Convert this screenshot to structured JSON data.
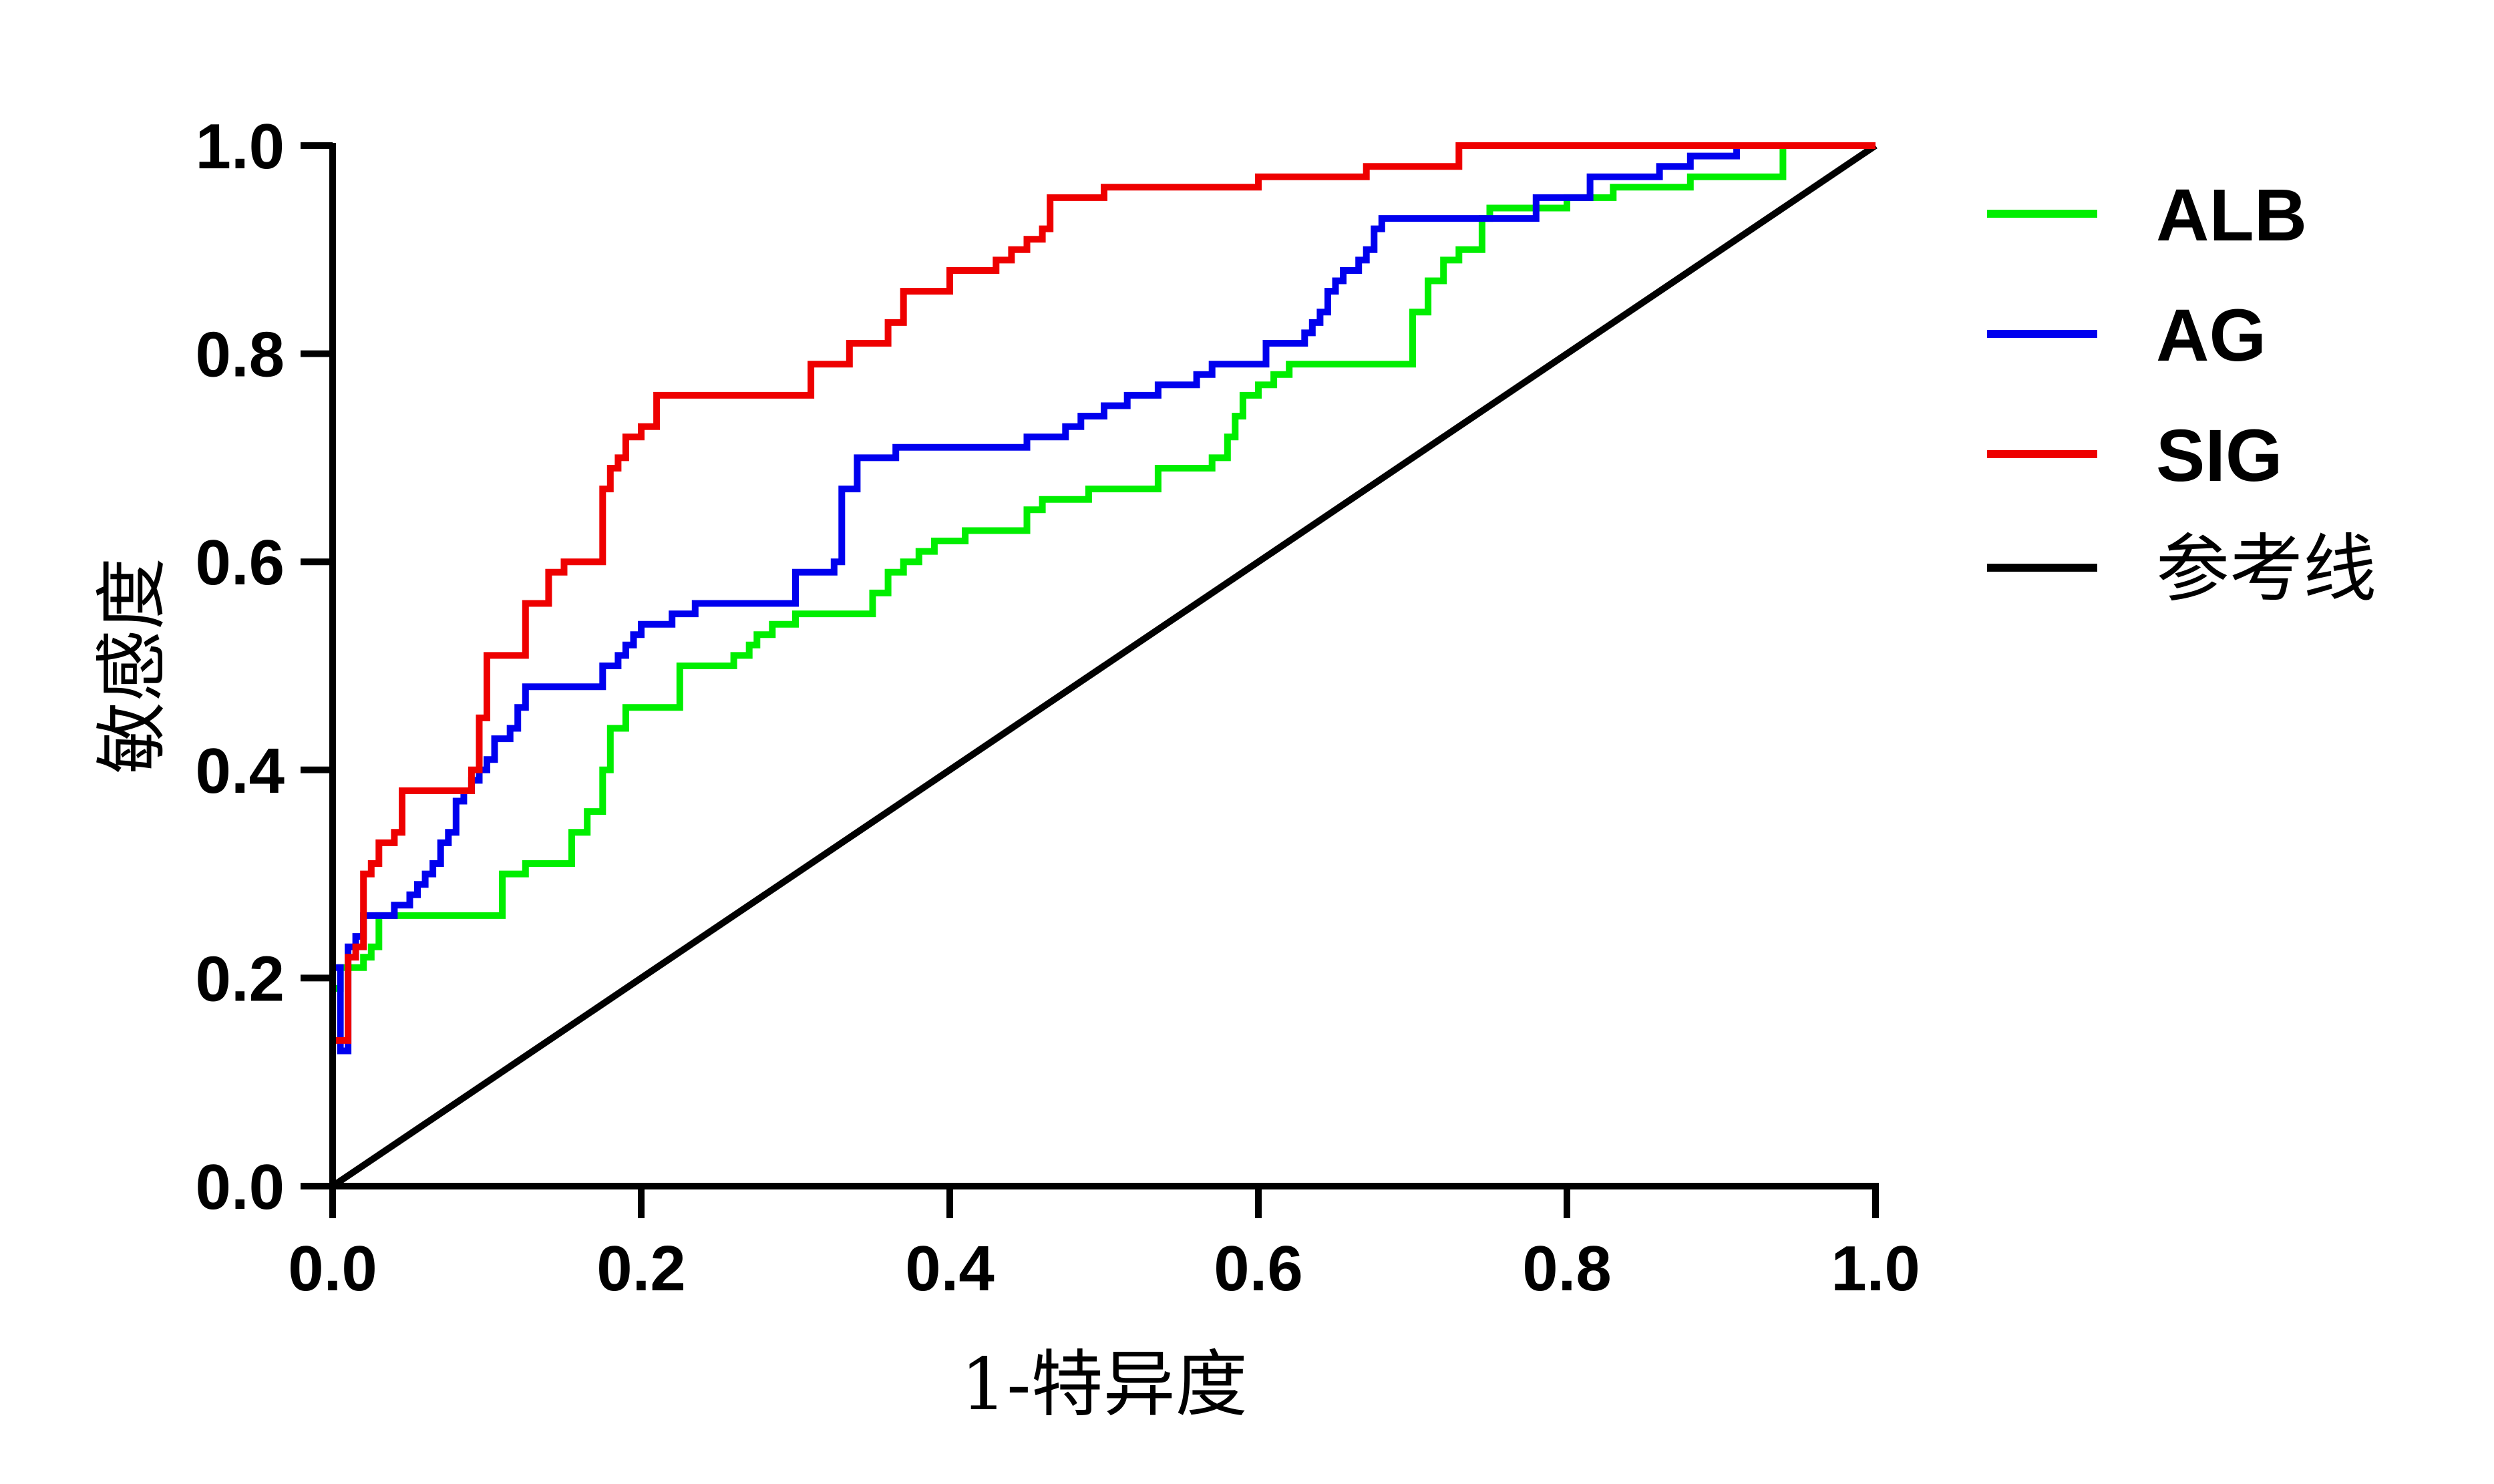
{
  "chart_data": {
    "type": "line",
    "title": "",
    "xlabel": "1-特异度",
    "ylabel": "敏感度",
    "xlim": [
      0,
      1.0
    ],
    "ylim": [
      0,
      1.0
    ],
    "xticks": [
      "0.0",
      "0.2",
      "0.4",
      "0.6",
      "0.8",
      "1.0"
    ],
    "yticks": [
      "0.0",
      "0.2",
      "0.4",
      "0.6",
      "0.8",
      "1.0"
    ],
    "grid": false,
    "legend_position": "right",
    "series": [
      {
        "name": "ALB",
        "color": "#00ee00",
        "step": true,
        "points": [
          [
            0,
            0.19
          ],
          [
            0.005,
            0.21
          ],
          [
            0.02,
            0.22
          ],
          [
            0.025,
            0.23
          ],
          [
            0.03,
            0.26
          ],
          [
            0.105,
            0.26
          ],
          [
            0.11,
            0.3
          ],
          [
            0.125,
            0.31
          ],
          [
            0.15,
            0.31
          ],
          [
            0.155,
            0.34
          ],
          [
            0.165,
            0.36
          ],
          [
            0.17,
            0.36
          ],
          [
            0.175,
            0.4
          ],
          [
            0.18,
            0.44
          ],
          [
            0.19,
            0.46
          ],
          [
            0.22,
            0.46
          ],
          [
            0.225,
            0.5
          ],
          [
            0.25,
            0.5
          ],
          [
            0.26,
            0.51
          ],
          [
            0.27,
            0.52
          ],
          [
            0.275,
            0.53
          ],
          [
            0.285,
            0.54
          ],
          [
            0.3,
            0.55
          ],
          [
            0.33,
            0.55
          ],
          [
            0.35,
            0.57
          ],
          [
            0.36,
            0.59
          ],
          [
            0.37,
            0.6
          ],
          [
            0.38,
            0.61
          ],
          [
            0.39,
            0.62
          ],
          [
            0.41,
            0.63
          ],
          [
            0.445,
            0.63
          ],
          [
            0.45,
            0.65
          ],
          [
            0.46,
            0.66
          ],
          [
            0.49,
            0.67
          ],
          [
            0.53,
            0.67
          ],
          [
            0.535,
            0.69
          ],
          [
            0.565,
            0.69
          ],
          [
            0.57,
            0.7
          ],
          [
            0.58,
            0.72
          ],
          [
            0.585,
            0.74
          ],
          [
            0.59,
            0.76
          ],
          [
            0.6,
            0.77
          ],
          [
            0.61,
            0.78
          ],
          [
            0.62,
            0.79
          ],
          [
            0.7,
            0.79
          ],
          [
            0.7,
            0.84
          ],
          [
            0.71,
            0.87
          ],
          [
            0.72,
            0.89
          ],
          [
            0.73,
            0.9
          ],
          [
            0.745,
            0.93
          ],
          [
            0.75,
            0.94
          ],
          [
            0.8,
            0.95
          ],
          [
            0.83,
            0.96
          ],
          [
            0.88,
            0.97
          ],
          [
            0.94,
            0.98
          ],
          [
            0.94,
            1.0
          ],
          [
            1.0,
            1.0
          ]
        ]
      },
      {
        "name": "AG",
        "color": "#0000ee",
        "step": true,
        "points": [
          [
            0,
            0.21
          ],
          [
            0.005,
            0.13
          ],
          [
            0.01,
            0.13
          ],
          [
            0.01,
            0.23
          ],
          [
            0.015,
            0.24
          ],
          [
            0.02,
            0.26
          ],
          [
            0.035,
            0.26
          ],
          [
            0.04,
            0.27
          ],
          [
            0.05,
            0.28
          ],
          [
            0.055,
            0.29
          ],
          [
            0.06,
            0.3
          ],
          [
            0.065,
            0.31
          ],
          [
            0.07,
            0.33
          ],
          [
            0.075,
            0.34
          ],
          [
            0.08,
            0.37
          ],
          [
            0.085,
            0.38
          ],
          [
            0.09,
            0.39
          ],
          [
            0.095,
            0.4
          ],
          [
            0.1,
            0.41
          ],
          [
            0.105,
            0.43
          ],
          [
            0.115,
            0.44
          ],
          [
            0.12,
            0.46
          ],
          [
            0.125,
            0.48
          ],
          [
            0.17,
            0.48
          ],
          [
            0.175,
            0.5
          ],
          [
            0.185,
            0.51
          ],
          [
            0.19,
            0.52
          ],
          [
            0.195,
            0.53
          ],
          [
            0.2,
            0.54
          ],
          [
            0.22,
            0.55
          ],
          [
            0.235,
            0.56
          ],
          [
            0.3,
            0.56
          ],
          [
            0.3,
            0.59
          ],
          [
            0.305,
            0.59
          ],
          [
            0.325,
            0.6
          ],
          [
            0.33,
            0.67
          ],
          [
            0.34,
            0.7
          ],
          [
            0.35,
            0.7
          ],
          [
            0.365,
            0.71
          ],
          [
            0.44,
            0.71
          ],
          [
            0.45,
            0.72
          ],
          [
            0.475,
            0.73
          ],
          [
            0.485,
            0.74
          ],
          [
            0.5,
            0.75
          ],
          [
            0.515,
            0.76
          ],
          [
            0.535,
            0.77
          ],
          [
            0.55,
            0.77
          ],
          [
            0.56,
            0.78
          ],
          [
            0.57,
            0.79
          ],
          [
            0.6,
            0.79
          ],
          [
            0.605,
            0.81
          ],
          [
            0.63,
            0.82
          ],
          [
            0.635,
            0.83
          ],
          [
            0.64,
            0.84
          ],
          [
            0.645,
            0.86
          ],
          [
            0.65,
            0.87
          ],
          [
            0.655,
            0.88
          ],
          [
            0.665,
            0.89
          ],
          [
            0.67,
            0.9
          ],
          [
            0.675,
            0.92
          ],
          [
            0.68,
            0.93
          ],
          [
            0.775,
            0.93
          ],
          [
            0.78,
            0.95
          ],
          [
            0.81,
            0.95
          ],
          [
            0.815,
            0.97
          ],
          [
            0.855,
            0.97
          ],
          [
            0.86,
            0.98
          ],
          [
            0.88,
            0.99
          ],
          [
            0.91,
            0.99
          ],
          [
            0.91,
            1.0
          ],
          [
            1.0,
            1.0
          ]
        ]
      },
      {
        "name": "SIG",
        "color": "#ee0000",
        "step": true,
        "points": [
          [
            0,
            0
          ],
          [
            0,
            0.14
          ],
          [
            0.01,
            0.14
          ],
          [
            0.01,
            0.22
          ],
          [
            0.015,
            0.23
          ],
          [
            0.02,
            0.3
          ],
          [
            0.025,
            0.31
          ],
          [
            0.03,
            0.33
          ],
          [
            0.035,
            0.33
          ],
          [
            0.04,
            0.34
          ],
          [
            0.045,
            0.38
          ],
          [
            0.085,
            0.38
          ],
          [
            0.09,
            0.4
          ],
          [
            0.095,
            0.45
          ],
          [
            0.1,
            0.47
          ],
          [
            0.1,
            0.51
          ],
          [
            0.125,
            0.51
          ],
          [
            0.125,
            0.56
          ],
          [
            0.14,
            0.56
          ],
          [
            0.14,
            0.59
          ],
          [
            0.15,
            0.6
          ],
          [
            0.175,
            0.6
          ],
          [
            0.175,
            0.67
          ],
          [
            0.18,
            0.69
          ],
          [
            0.185,
            0.7
          ],
          [
            0.19,
            0.72
          ],
          [
            0.2,
            0.72
          ],
          [
            0.2,
            0.73
          ],
          [
            0.21,
            0.73
          ],
          [
            0.21,
            0.76
          ],
          [
            0.31,
            0.76
          ],
          [
            0.31,
            0.79
          ],
          [
            0.335,
            0.79
          ],
          [
            0.335,
            0.81
          ],
          [
            0.35,
            0.81
          ],
          [
            0.36,
            0.83
          ],
          [
            0.37,
            0.86
          ],
          [
            0.4,
            0.86
          ],
          [
            0.4,
            0.88
          ],
          [
            0.43,
            0.88
          ],
          [
            0.43,
            0.89
          ],
          [
            0.44,
            0.89
          ],
          [
            0.44,
            0.9
          ],
          [
            0.45,
            0.9
          ],
          [
            0.45,
            0.91
          ],
          [
            0.46,
            0.91
          ],
          [
            0.46,
            0.92
          ],
          [
            0.465,
            0.92
          ],
          [
            0.465,
            0.95
          ],
          [
            0.495,
            0.95
          ],
          [
            0.5,
            0.96
          ],
          [
            0.6,
            0.96
          ],
          [
            0.6,
            0.97
          ],
          [
            0.67,
            0.97
          ],
          [
            0.67,
            0.98
          ],
          [
            0.73,
            0.98
          ],
          [
            0.73,
            1.0
          ],
          [
            1.0,
            1.0
          ]
        ]
      },
      {
        "name": "参考线",
        "color": "#000000",
        "step": false,
        "points": [
          [
            0,
            0
          ],
          [
            1.0,
            1.0
          ]
        ]
      }
    ]
  }
}
